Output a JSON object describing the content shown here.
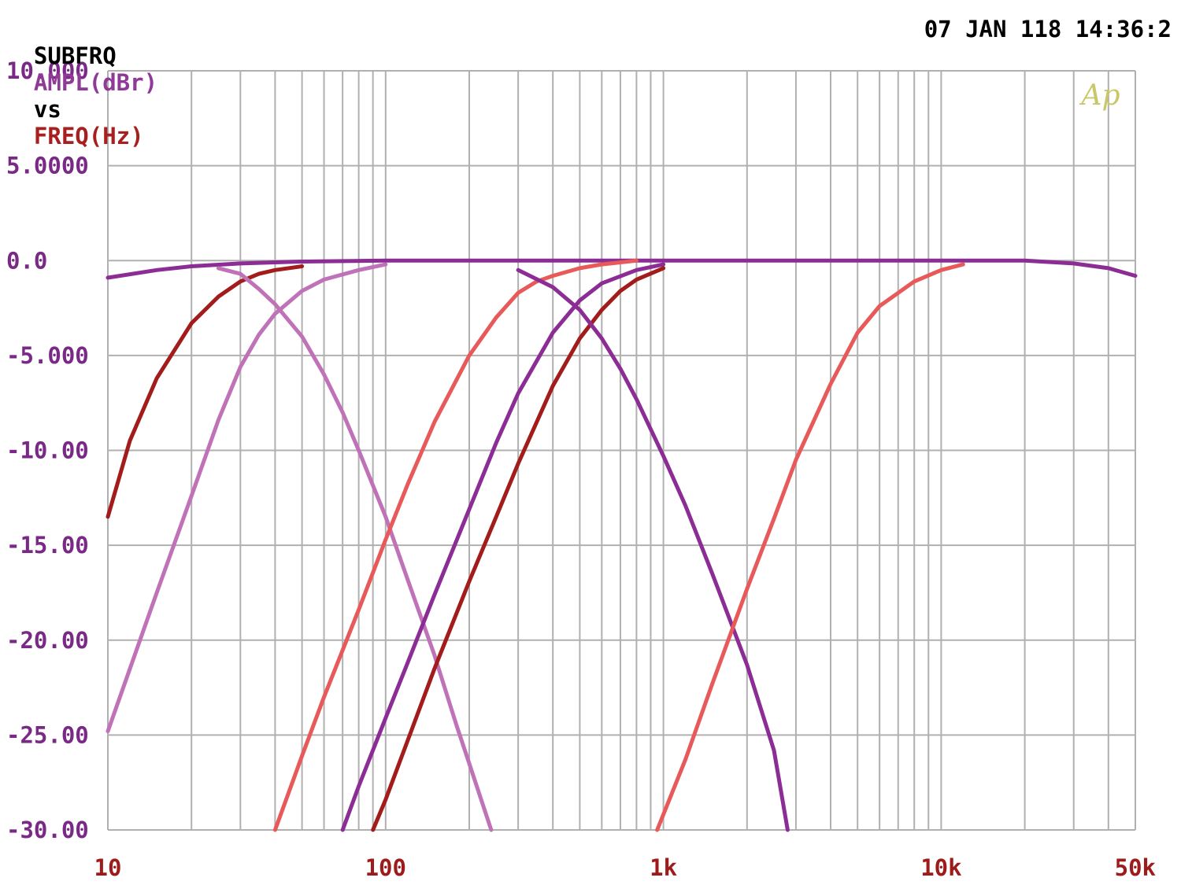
{
  "header": {
    "prefix": "SUBFRQ",
    "y_quantity": "AMPL(dBr)",
    "vs": "vs",
    "x_quantity": "FREQ(Hz)",
    "timestamp": "07 JAN 118 14:36:2"
  },
  "logo": "Ap",
  "colors": {
    "background": "#ffffff",
    "grid": "#b0b0b0",
    "y_labels": "#7a2a86",
    "x_labels": "#9e1b1b",
    "logo": "#c8c86a",
    "header_black": "#000000",
    "header_purple": "#8e3a96",
    "header_red": "#a81f1f"
  },
  "chart_data": {
    "type": "line",
    "title": "",
    "xlabel": "FREQ(Hz)",
    "ylabel": "AMPL(dBr)",
    "x_scale": "log",
    "xlim": [
      10,
      50000
    ],
    "ylim": [
      -30,
      10
    ],
    "grid": true,
    "x_ticks": [
      {
        "value": 10,
        "label": "10"
      },
      {
        "value": 100,
        "label": "100"
      },
      {
        "value": 1000,
        "label": "1k"
      },
      {
        "value": 10000,
        "label": "10k"
      },
      {
        "value": 50000,
        "label": "50k"
      }
    ],
    "y_ticks": [
      {
        "value": 10,
        "label": "10.000"
      },
      {
        "value": 5,
        "label": "5.0000"
      },
      {
        "value": 0,
        "label": "0.0"
      },
      {
        "value": -5,
        "label": "-5.000"
      },
      {
        "value": -10,
        "label": "-10.00"
      },
      {
        "value": -15,
        "label": "-15.00"
      },
      {
        "value": -20,
        "label": "-20.00"
      },
      {
        "value": -25,
        "label": "-25.00"
      },
      {
        "value": -30,
        "label": "-30.00"
      }
    ],
    "series": [
      {
        "color": "#8b2d95",
        "x": [
          10,
          15,
          20,
          30,
          50,
          100,
          200,
          500,
          1000,
          2000,
          5000,
          10000,
          20000,
          30000,
          40000,
          50000
        ],
        "y": [
          -0.9,
          -0.5,
          -0.3,
          -0.15,
          -0.05,
          0,
          0,
          0,
          0,
          0,
          0,
          0,
          0,
          -0.15,
          -0.4,
          -0.8
        ]
      },
      {
        "color": "#a31c1c",
        "x": [
          10,
          12,
          15,
          20,
          25,
          30,
          35,
          40,
          50
        ],
        "y": [
          -13.5,
          -9.5,
          -6.2,
          -3.3,
          -1.9,
          -1.1,
          -0.7,
          -0.5,
          -0.3
        ]
      },
      {
        "color": "#c072b8",
        "x": [
          10,
          15,
          20,
          25,
          30,
          35,
          40,
          50,
          60,
          80,
          100
        ],
        "y": [
          -24.8,
          -17.5,
          -12.4,
          -8.4,
          -5.6,
          -3.9,
          -2.8,
          -1.6,
          -1.0,
          -0.5,
          -0.2
        ]
      },
      {
        "color": "#c072b8",
        "x": [
          25,
          30,
          35,
          40,
          50,
          60,
          70,
          80,
          100,
          120,
          150,
          180,
          200,
          240
        ],
        "y": [
          -0.4,
          -0.7,
          -1.5,
          -2.3,
          -4.0,
          -6.0,
          -8.0,
          -10.0,
          -13.5,
          -16.8,
          -20.8,
          -24.5,
          -26.5,
          -30
        ]
      },
      {
        "color": "#e85a5a",
        "x": [
          40,
          50,
          60,
          80,
          100,
          120,
          150,
          200,
          250,
          300,
          350,
          400,
          500,
          600,
          800
        ],
        "y": [
          -30,
          -26.1,
          -23.0,
          -18.4,
          -14.7,
          -11.8,
          -8.5,
          -5.0,
          -3.0,
          -1.7,
          -1.1,
          -0.8,
          -0.4,
          -0.2,
          0
        ]
      },
      {
        "color": "#8b2d95",
        "x": [
          70,
          80,
          100,
          120,
          150,
          200,
          250,
          300,
          400,
          500,
          600,
          800,
          1000
        ],
        "y": [
          -30,
          -27.7,
          -24.1,
          -21.2,
          -17.6,
          -13.1,
          -9.6,
          -7.0,
          -3.8,
          -2.1,
          -1.2,
          -0.5,
          -0.2
        ]
      },
      {
        "color": "#a31c1c",
        "x": [
          90,
          100,
          120,
          150,
          200,
          250,
          300,
          400,
          500,
          600,
          700,
          800,
          1000
        ],
        "y": [
          -30,
          -28.4,
          -25.3,
          -21.5,
          -16.9,
          -13.5,
          -10.7,
          -6.6,
          -4.1,
          -2.6,
          -1.6,
          -1.0,
          -0.4
        ]
      },
      {
        "color": "#8b2d95",
        "x": [
          300,
          400,
          500,
          600,
          700,
          800,
          1000,
          1200,
          1500,
          2000,
          2500,
          2800
        ],
        "y": [
          -0.5,
          -1.4,
          -2.6,
          -4.1,
          -5.7,
          -7.3,
          -10.3,
          -12.9,
          -16.5,
          -21.3,
          -25.8,
          -30
        ]
      },
      {
        "color": "#e85a5a",
        "x": [
          950,
          1200,
          1500,
          2000,
          2500,
          3000,
          4000,
          5000,
          6000,
          8000,
          10000,
          12000
        ],
        "y": [
          -30,
          -26.3,
          -22.3,
          -17.3,
          -13.6,
          -10.5,
          -6.5,
          -3.8,
          -2.4,
          -1.1,
          -0.5,
          -0.2
        ]
      }
    ]
  }
}
